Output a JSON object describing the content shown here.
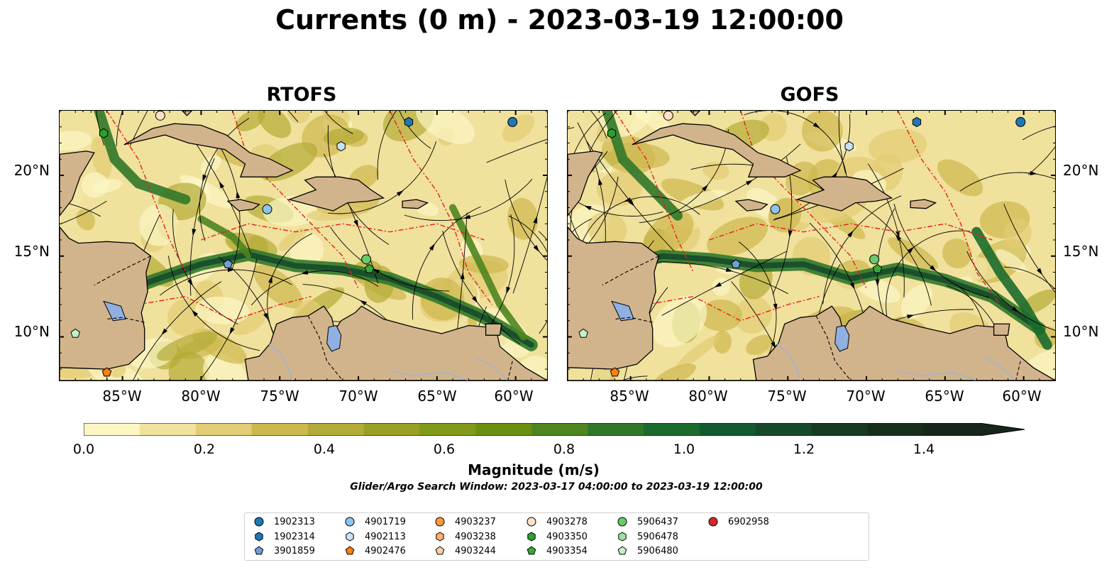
{
  "title": "Currents (0 m) - 2023-03-19 12:00:00",
  "panels": [
    {
      "title": "RTOFS"
    },
    {
      "title": "GOFS"
    }
  ],
  "lat_ticks": [
    "20°N",
    "15°N",
    "10°N"
  ],
  "lon_ticks": [
    "85°W",
    "80°W",
    "75°W",
    "70°W",
    "65°W",
    "60°W"
  ],
  "colorbar": {
    "label": "Magnitude (m/s)",
    "ticks": [
      "0.0",
      "0.2",
      "0.4",
      "0.6",
      "0.8",
      "1.0",
      "1.2",
      "1.4"
    ],
    "range": [
      0.0,
      1.5
    ],
    "colors": [
      "#fbf6c4",
      "#f0e19c",
      "#e2cc75",
      "#cdb84e",
      "#b3ab37",
      "#99a023",
      "#819a17",
      "#6a9012",
      "#4e8520",
      "#307829",
      "#1b6b2e",
      "#135b2f",
      "#164a2b",
      "#173b25",
      "#17301d",
      "#16261a"
    ],
    "land_color": "#d2b48c",
    "lake_color": "#8fb0e0"
  },
  "search_window": "Glider/Argo Search Window: 2023-03-17 04:00:00 to 2023-03-19 12:00:00",
  "legend": [
    {
      "id": "1902313",
      "marker": "circle",
      "color": "#1f77b4"
    },
    {
      "id": "1902314",
      "marker": "hexagon",
      "color": "#1f77b4"
    },
    {
      "id": "3901859",
      "marker": "pentagon",
      "color": "#6f9fd8"
    },
    {
      "id": "4901719",
      "marker": "circle",
      "color": "#8fc3ea"
    },
    {
      "id": "4902113",
      "marker": "hexagon",
      "color": "#c6e2f7"
    },
    {
      "id": "4902476",
      "marker": "pentagon",
      "color": "#ff7f0e"
    },
    {
      "id": "4903237",
      "marker": "circle",
      "color": "#fd9a3c"
    },
    {
      "id": "4903238",
      "marker": "hexagon",
      "color": "#fdae6b"
    },
    {
      "id": "4903244",
      "marker": "pentagon",
      "color": "#fdd0a2"
    },
    {
      "id": "4903278",
      "marker": "circle",
      "color": "#fde0c5"
    },
    {
      "id": "4903350",
      "marker": "hexagon",
      "color": "#2ca02c"
    },
    {
      "id": "4903354",
      "marker": "pentagon",
      "color": "#3aa83a"
    },
    {
      "id": "5906437",
      "marker": "circle",
      "color": "#6ac96a"
    },
    {
      "id": "5906478",
      "marker": "hexagon",
      "color": "#9ee29e"
    },
    {
      "id": "5906480",
      "marker": "pentagon",
      "color": "#c7f0c7"
    },
    {
      "id": "6902958",
      "marker": "circle",
      "color": "#d62728"
    }
  ],
  "platforms": [
    {
      "id": "1902313",
      "lon": -60.2,
      "lat": 23.3
    },
    {
      "id": "1902314",
      "lon": -66.8,
      "lat": 23.3
    },
    {
      "id": "3901859",
      "lon": -78.3,
      "lat": 14.5
    },
    {
      "id": "4901719",
      "lon": -75.8,
      "lat": 17.9
    },
    {
      "id": "4902113",
      "lon": -71.1,
      "lat": 21.8
    },
    {
      "id": "4902476",
      "lon": -86.0,
      "lat": 7.8
    },
    {
      "id": "4903278",
      "lon": -82.6,
      "lat": 23.7
    },
    {
      "id": "4903350",
      "lon": -86.2,
      "lat": 22.6
    },
    {
      "id": "4903354",
      "lon": -69.3,
      "lat": 14.2
    },
    {
      "id": "5906437",
      "lon": -69.5,
      "lat": 14.8
    },
    {
      "id": "5906480",
      "lon": -88.0,
      "lat": 10.2
    }
  ]
}
